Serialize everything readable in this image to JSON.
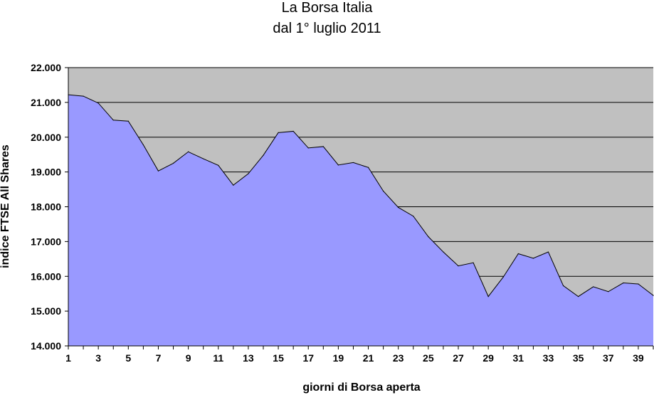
{
  "chart_data": {
    "type": "area",
    "title": "La Borsa Italia",
    "subtitle": "dal 1° luglio 2011",
    "xlabel": "giorni di Borsa aperta",
    "ylabel": "indice FTSE All Shares",
    "ylim": [
      14000,
      22000
    ],
    "y_ticks": [
      "14.000",
      "15.000",
      "16.000",
      "17.000",
      "18.000",
      "19.000",
      "20.000",
      "21.000",
      "22.000"
    ],
    "x_ticks": [
      "1",
      "3",
      "5",
      "7",
      "9",
      "11",
      "13",
      "15",
      "17",
      "19",
      "21",
      "23",
      "25",
      "27",
      "29",
      "31",
      "33",
      "35",
      "37",
      "39"
    ],
    "grid": true,
    "fill_color": "#9999ff",
    "plot_background": "#c0c0c0",
    "x": [
      1,
      2,
      3,
      4,
      5,
      6,
      7,
      8,
      9,
      10,
      11,
      12,
      13,
      14,
      15,
      16,
      17,
      18,
      19,
      20,
      21,
      22,
      23,
      24,
      25,
      26,
      27,
      28,
      29,
      30,
      31,
      32,
      33,
      34,
      35,
      36,
      37,
      38,
      39,
      40
    ],
    "values": [
      21220,
      21180,
      20980,
      20490,
      20460,
      19780,
      19030,
      19250,
      19580,
      19380,
      19190,
      18620,
      18950,
      19480,
      20130,
      20170,
      19690,
      19730,
      19200,
      19270,
      19130,
      18450,
      17980,
      17730,
      17140,
      16700,
      16300,
      16390,
      15420,
      15980,
      16650,
      16520,
      16700,
      15730,
      15420,
      15700,
      15560,
      15810,
      15780,
      15450
    ]
  }
}
